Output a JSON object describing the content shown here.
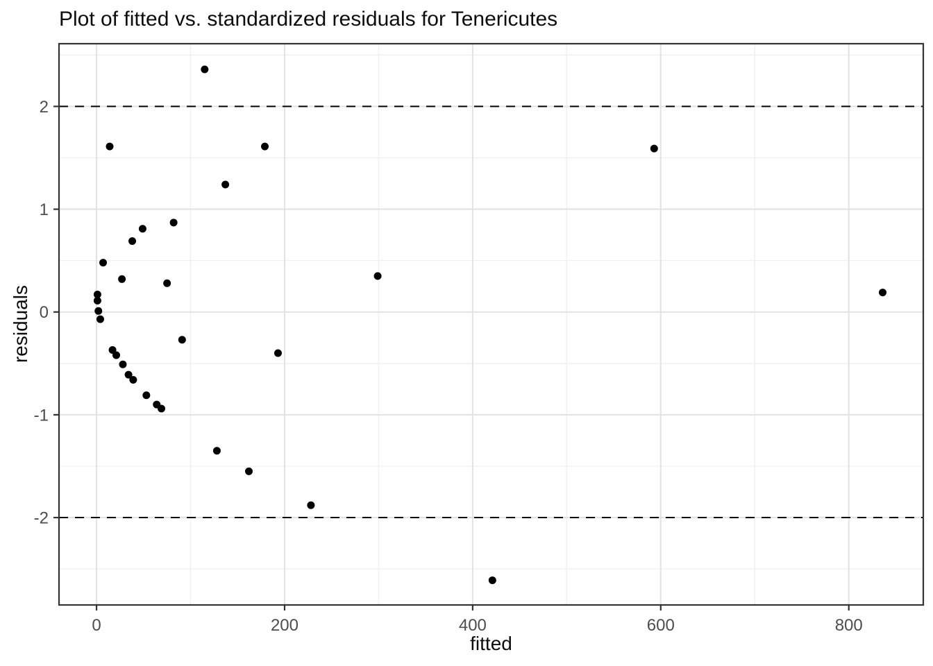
{
  "title": "Plot of fitted vs. standardized residuals for Tenericutes",
  "chart_data": {
    "type": "scatter",
    "title": "Plot of fitted vs. standardized residuals for Tenericutes",
    "xlabel": "fitted",
    "ylabel": "residuals",
    "x_ticks": [
      0,
      200,
      400,
      600,
      800
    ],
    "x_minor_ticks": [
      100,
      300,
      500,
      700
    ],
    "y_ticks": [
      -2,
      -1,
      0,
      1,
      2
    ],
    "y_minor_ticks": [
      -2.5,
      -1.5,
      -0.5,
      0.5,
      1.5,
      2.5
    ],
    "xlim": [
      -39.9,
      879.2
    ],
    "ylim": [
      -2.85,
      2.61
    ],
    "grid": true,
    "legend": false,
    "reference_hlines": [
      2,
      -2
    ],
    "points": [
      [
        115,
        2.36
      ],
      [
        14,
        1.61
      ],
      [
        179,
        1.61
      ],
      [
        593,
        1.59
      ],
      [
        137,
        1.24
      ],
      [
        82,
        0.87
      ],
      [
        49,
        0.81
      ],
      [
        38,
        0.69
      ],
      [
        7,
        0.48
      ],
      [
        299,
        0.35
      ],
      [
        27,
        0.32
      ],
      [
        75,
        0.28
      ],
      [
        836,
        0.19
      ],
      [
        1,
        0.17
      ],
      [
        1,
        0.11
      ],
      [
        2,
        0.01
      ],
      [
        4,
        -0.07
      ],
      [
        91,
        -0.27
      ],
      [
        17,
        -0.37
      ],
      [
        21,
        -0.42
      ],
      [
        193,
        -0.4
      ],
      [
        28,
        -0.51
      ],
      [
        34,
        -0.61
      ],
      [
        39,
        -0.66
      ],
      [
        53,
        -0.81
      ],
      [
        64,
        -0.9
      ],
      [
        69,
        -0.94
      ],
      [
        128,
        -1.35
      ],
      [
        162,
        -1.55
      ],
      [
        228,
        -1.88
      ],
      [
        421,
        -2.61
      ]
    ]
  },
  "style": {
    "background": "#ffffff",
    "panel_background": "#ffffff",
    "grid_major_color": "#e2e2e2",
    "grid_minor_color": "#efefef",
    "panel_border_color": "#333333",
    "tick_color": "#333333",
    "tick_label_color": "#4d4d4d",
    "title_color": "#0d0d0d",
    "axis_title_color": "#0d0d0d",
    "point_color": "#000000",
    "reference_line_color": "#000000"
  }
}
